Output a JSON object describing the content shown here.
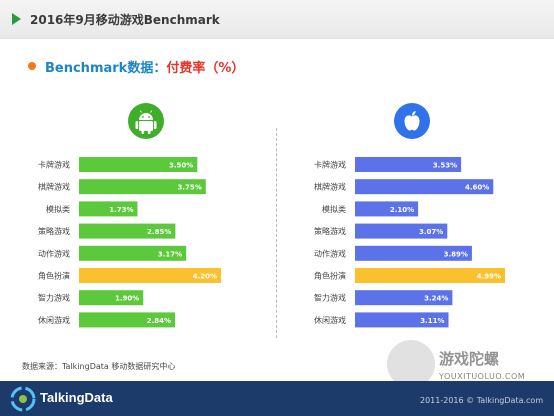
{
  "page": {
    "title": "2016年9月移动游戏Benchmark",
    "section_heading": "Benchmark数据：",
    "section_metric": "付费率（%）",
    "source": "数据来源：TalkingData 移动数据研究中心",
    "logo": "TalkingData",
    "copyright": "2011-2016 © TalkingData.com",
    "watermark_text": "游戏陀螺",
    "watermark_url": "YOUXITUOLUO.COM",
    "icons": {
      "left_badge": "android-icon",
      "right_badge": "apple-icon"
    },
    "colors": {
      "android": "#5cc83b",
      "ios": "#5b72e8",
      "highlight": "#fbc02d",
      "accent": "#1b86c6",
      "metric": "#e8352b"
    }
  },
  "chart_data": [
    {
      "type": "bar",
      "orientation": "horizontal",
      "platform_icon": "android-icon",
      "categories": [
        "卡牌游戏",
        "棋牌游戏",
        "模拟类",
        "策略游戏",
        "动作游戏",
        "角色扮演",
        "智力游戏",
        "休闲游戏"
      ],
      "values": [
        3.5,
        3.75,
        1.73,
        2.85,
        3.17,
        4.2,
        1.9,
        2.84
      ],
      "labels": [
        "3.50%",
        "3.75%",
        "1.73%",
        "2.85%",
        "3.17%",
        "4.20%",
        "1.90%",
        "2.84%"
      ],
      "highlight_index": 5,
      "xlim": [
        0,
        4.2
      ]
    },
    {
      "type": "bar",
      "orientation": "horizontal",
      "platform_icon": "apple-icon",
      "categories": [
        "卡牌游戏",
        "棋牌游戏",
        "模拟类",
        "策略游戏",
        "动作游戏",
        "角色扮演",
        "智力游戏",
        "休闲游戏"
      ],
      "values": [
        3.53,
        4.6,
        2.1,
        3.07,
        3.89,
        4.99,
        3.24,
        3.11
      ],
      "labels": [
        "3.53%",
        "4.60%",
        "2.10%",
        "3.07%",
        "3.89%",
        "4.99%",
        "3.24%",
        "3.11%"
      ],
      "highlight_index": 5,
      "xlim": [
        0,
        4.99
      ]
    }
  ]
}
